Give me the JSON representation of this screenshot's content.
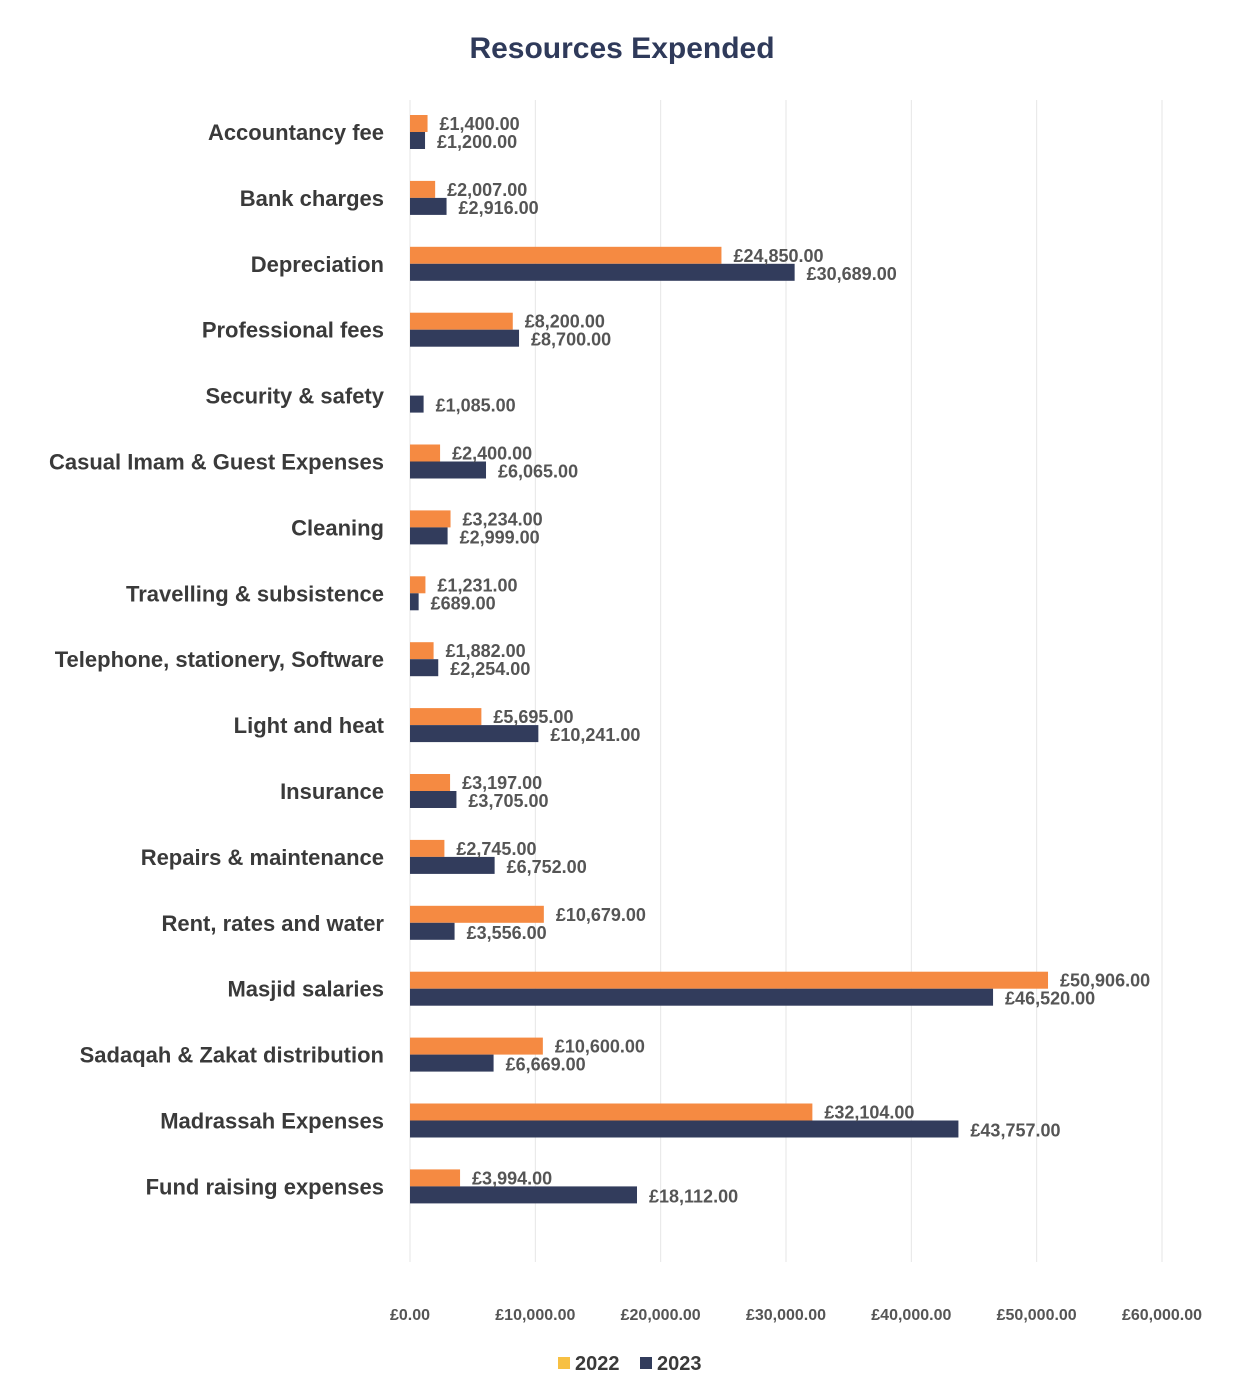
{
  "chart_data": {
    "type": "bar",
    "orientation": "horizontal",
    "title": "Resources Expended",
    "categories": [
      "Accountancy fee",
      "Bank charges",
      "Depreciation",
      "Professional fees",
      "Security & safety",
      "Casual Imam  & Guest Expenses",
      "Cleaning",
      "Travelling & subsistence",
      "Telephone, stationery, Software",
      "Light and heat",
      "Insurance",
      "Repairs & maintenance",
      "Rent, rates and water",
      "Masjid salaries",
      "Sadaqah & Zakat distribution",
      "Madrassah Expenses",
      "Fund raising expenses"
    ],
    "series": [
      {
        "name": "2022",
        "color": "#f58a42",
        "values": [
          1400,
          2007,
          24850,
          8200,
          null,
          2400,
          3234,
          1231,
          1882,
          5695,
          3197,
          2745,
          10679,
          50906,
          10600,
          32104,
          3994
        ],
        "labels": [
          "£1,400.00",
          "£2,007.00",
          "£24,850.00",
          "£8,200.00",
          "",
          "£2,400.00",
          "£3,234.00",
          "£1,231.00",
          "£1,882.00",
          "£5,695.00",
          "£3,197.00",
          "£2,745.00",
          "£10,679.00",
          "£50,906.00",
          "£10,600.00",
          "£32,104.00",
          "£3,994.00"
        ]
      },
      {
        "name": "2023",
        "color": "#323c5c",
        "values": [
          1200,
          2916,
          30689,
          8700,
          1085,
          6065,
          2999,
          689,
          2254,
          10241,
          3705,
          6752,
          3556,
          46520,
          6669,
          43757,
          18112
        ],
        "labels": [
          "£1,200.00",
          "£2,916.00",
          "£30,689.00",
          "£8,700.00",
          "£1,085.00",
          "£6,065.00",
          "£2,999.00",
          "£689.00",
          "£2,254.00",
          "£10,241.00",
          "£3,705.00",
          "£6,752.00",
          "£3,556.00",
          "£46,520.00",
          "£6,669.00",
          "£43,757.00",
          "£18,112.00"
        ]
      }
    ],
    "xlim": [
      0,
      60000
    ],
    "xticks": [
      0,
      10000,
      20000,
      30000,
      40000,
      50000,
      60000
    ],
    "xtick_labels": [
      "£0.00",
      "£10,000.00",
      "£20,000.00",
      "£30,000.00",
      "£40,000.00",
      "£50,000.00",
      "£60,000.00"
    ],
    "legend_swatch_colors": [
      "#f7c043",
      "#323c5c"
    ],
    "legend_position": "bottom",
    "grid": true
  }
}
